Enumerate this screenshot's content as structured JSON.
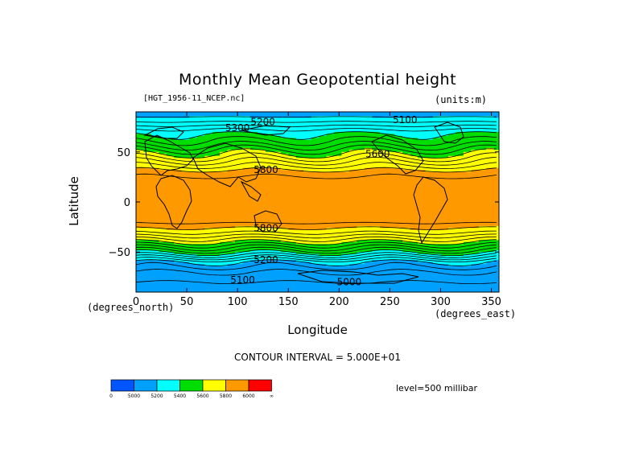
{
  "chart_data": {
    "type": "heatmap",
    "title": "Monthly Mean Geopotential height",
    "dataset_label": "[HGT_1956-11_NCEP.nc]",
    "units_label": "(units:m)",
    "xlabel": "Longitude",
    "ylabel": "Latitude",
    "x_units": "(degrees_east)",
    "y_units": "(degrees_north)",
    "xlim": [
      0,
      357.5
    ],
    "ylim": [
      -90,
      90
    ],
    "x_ticks": [
      0,
      50,
      100,
      150,
      200,
      250,
      300,
      350
    ],
    "y_ticks": [
      50,
      0,
      -50
    ],
    "contour_interval_text": "CONTOUR INTERVAL = 5.000E+01",
    "level_text": "level=500 millibar",
    "color_bins": [
      {
        "lower": "-∞",
        "upper": 5000,
        "color": "#0055ff"
      },
      {
        "lower": 5000,
        "upper": 5200,
        "color": "#00a0ff"
      },
      {
        "lower": 5200,
        "upper": 5400,
        "color": "#00ffff"
      },
      {
        "lower": 5400,
        "upper": 5600,
        "color": "#00dd00"
      },
      {
        "lower": 5600,
        "upper": 5800,
        "color": "#ffff00"
      },
      {
        "lower": 5800,
        "upper": 6000,
        "color": "#ff9900"
      },
      {
        "lower": 6000,
        "upper": "∞",
        "color": "#ff0000"
      }
    ],
    "colorbar_labels": [
      "0",
      "5000",
      "5200",
      "5400",
      "5600",
      "5800",
      "6000",
      "∞"
    ],
    "zonal_profile": {
      "lat": [
        90,
        80,
        70,
        60,
        50,
        40,
        30,
        20,
        10,
        0,
        -10,
        -20,
        -30,
        -40,
        -50,
        -60,
        -70,
        -80,
        -90
      ],
      "height": [
        5150,
        5250,
        5380,
        5460,
        5580,
        5700,
        5820,
        5880,
        5890,
        5880,
        5880,
        5860,
        5760,
        5600,
        5420,
        5200,
        5100,
        5050,
        5020
      ]
    },
    "contour_labels": [
      {
        "text": "5200",
        "lon": 125,
        "lat": 80
      },
      {
        "text": "5300",
        "lon": 100,
        "lat": 74
      },
      {
        "text": "5100",
        "lon": 265,
        "lat": 82
      },
      {
        "text": "5600",
        "lon": 238,
        "lat": 48
      },
      {
        "text": "5800",
        "lon": 128,
        "lat": 32
      },
      {
        "text": "5800",
        "lon": 128,
        "lat": -26
      },
      {
        "text": "5200",
        "lon": 128,
        "lat": -58
      },
      {
        "text": "5100",
        "lon": 105,
        "lat": -78
      },
      {
        "text": "5000",
        "lon": 210,
        "lat": -80
      }
    ]
  }
}
